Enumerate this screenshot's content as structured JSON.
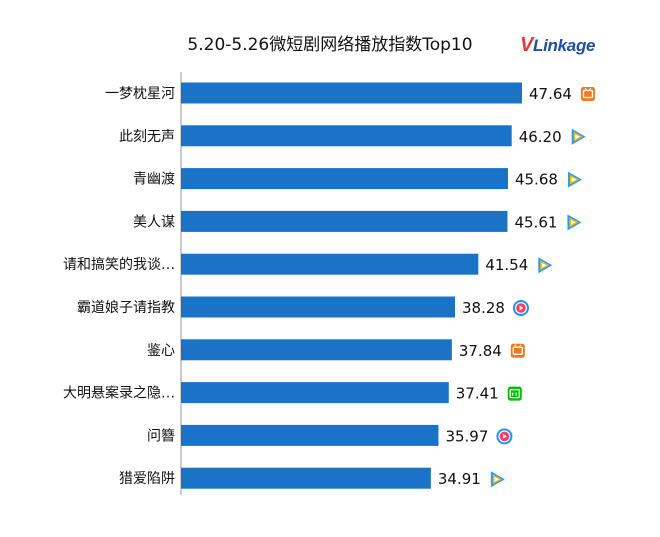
{
  "brand": {
    "logo_v": "V",
    "logo_rest": "Linkage"
  },
  "chart_data": {
    "type": "bar",
    "orientation": "horizontal",
    "title": "5.20-5.26微短剧网络播放指数Top10",
    "categories": [
      "一梦枕星河",
      "此刻无声",
      "青幽渡",
      "美人谋",
      "请和搞笑的我谈…",
      "霸道娘子请指教",
      "鉴心",
      "大明悬案录之隐…",
      "问簪",
      "猎爱陷阱"
    ],
    "values": [
      47.64,
      46.2,
      45.68,
      45.61,
      41.54,
      38.28,
      37.84,
      37.41,
      35.97,
      34.91
    ],
    "value_labels": [
      "47.64",
      "46.20",
      "45.68",
      "45.61",
      "41.54",
      "38.28",
      "37.84",
      "37.41",
      "35.97",
      "34.91"
    ],
    "platform_icons": [
      "mango-tv-icon",
      "tencent-video-icon",
      "tencent-video-icon",
      "tencent-video-icon",
      "tencent-video-icon",
      "youku-icon",
      "mango-tv-icon",
      "iqiyi-icon",
      "youku-icon",
      "tencent-video-icon"
    ],
    "bar_color": "#1a73c6",
    "axis_color": "#999999",
    "xlim": [
      0,
      55
    ],
    "grid": false,
    "legend": "none"
  }
}
